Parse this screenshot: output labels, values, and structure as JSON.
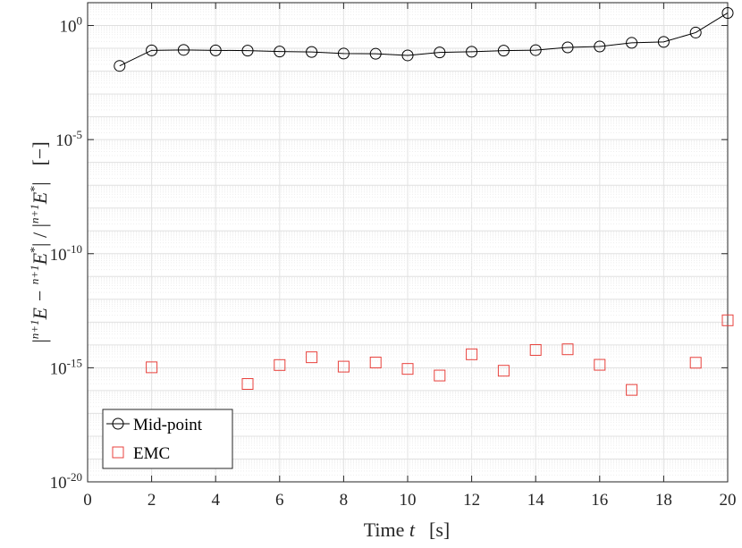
{
  "chart_data": {
    "type": "scatter",
    "x_label": "Time",
    "x_label_var": "t",
    "x_label_unit": "[s]",
    "y_label": "|n+1E − n+1E*| / |n+1E*|   [−]",
    "y_label_parts": {
      "open_abs": "|",
      "sup1": "n+1",
      "E1": "E − ",
      "sup2": "n+1",
      "E2": "E",
      "star": "*",
      "close_abs": "| / |",
      "sup3": "n+1",
      "E3": "E",
      "star2": "*",
      "end": "|",
      "unit": "[−]"
    },
    "x_range": [
      0,
      20
    ],
    "x_ticks": [
      0,
      2,
      4,
      6,
      8,
      10,
      12,
      14,
      16,
      18,
      20
    ],
    "y_scale": "log",
    "y_range_exponent": [
      -20,
      1
    ],
    "y_ticks": [
      {
        "exp": 0,
        "base": "10",
        "sup": "0"
      },
      {
        "exp": -5,
        "base": "10",
        "sup": "-5"
      },
      {
        "exp": -10,
        "base": "10",
        "sup": "-10"
      },
      {
        "exp": -15,
        "base": "10",
        "sup": "-15"
      },
      {
        "exp": -20,
        "base": "10",
        "sup": "-20"
      }
    ],
    "grid": true,
    "legend_position": "bottom-left",
    "series": [
      {
        "name": "Mid-point",
        "marker": "circle",
        "line": true,
        "color": "#000000",
        "x": [
          1,
          2,
          3,
          4,
          5,
          6,
          7,
          8,
          9,
          10,
          11,
          12,
          13,
          14,
          15,
          16,
          17,
          18,
          19,
          20
        ],
        "y_exp": [
          -1.77,
          -1.09,
          -1.07,
          -1.09,
          -1.1,
          -1.14,
          -1.16,
          -1.23,
          -1.24,
          -1.31,
          -1.18,
          -1.15,
          -1.1,
          -1.08,
          -0.96,
          -0.92,
          -0.76,
          -0.72,
          -0.31,
          0.55
        ]
      },
      {
        "name": "EMC",
        "marker": "square",
        "line": false,
        "color": "#e8413c",
        "x": [
          2,
          5,
          6,
          7,
          8,
          9,
          10,
          11,
          12,
          13,
          14,
          15,
          16,
          17,
          19,
          20
        ],
        "y_exp": [
          -14.98,
          -15.71,
          -14.88,
          -14.54,
          -14.95,
          -14.77,
          -15.05,
          -15.34,
          -14.41,
          -15.13,
          -14.22,
          -14.19,
          -14.87,
          -15.97,
          -14.78,
          -12.92
        ]
      }
    ]
  }
}
